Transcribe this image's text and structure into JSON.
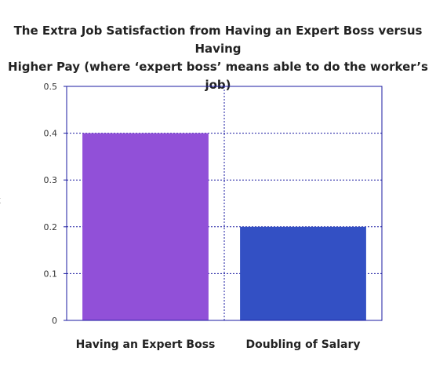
{
  "chart_data": {
    "type": "bar",
    "title_lines": [
      "The Extra Job Satisfaction from Having an Expert Boss versus Having",
      "Higher Pay (where ‘expert boss’ means able to do the worker’s job)"
    ],
    "ylabel": "x",
    "categories": [
      "Having an Expert Boss",
      "Doubling of Salary"
    ],
    "values": [
      0.4,
      0.2
    ],
    "bar_colors": [
      "#9150d8",
      "#3350c4"
    ],
    "ylim": [
      0,
      0.5
    ],
    "yticks": [
      0,
      0.1,
      0.2,
      0.3,
      0.4,
      0.5
    ],
    "ytick_labels": [
      "0",
      "0.1",
      "0.2",
      "0.3",
      "0.4",
      "0.5"
    ],
    "grid": true,
    "axis_color": "#1a1aa0"
  }
}
